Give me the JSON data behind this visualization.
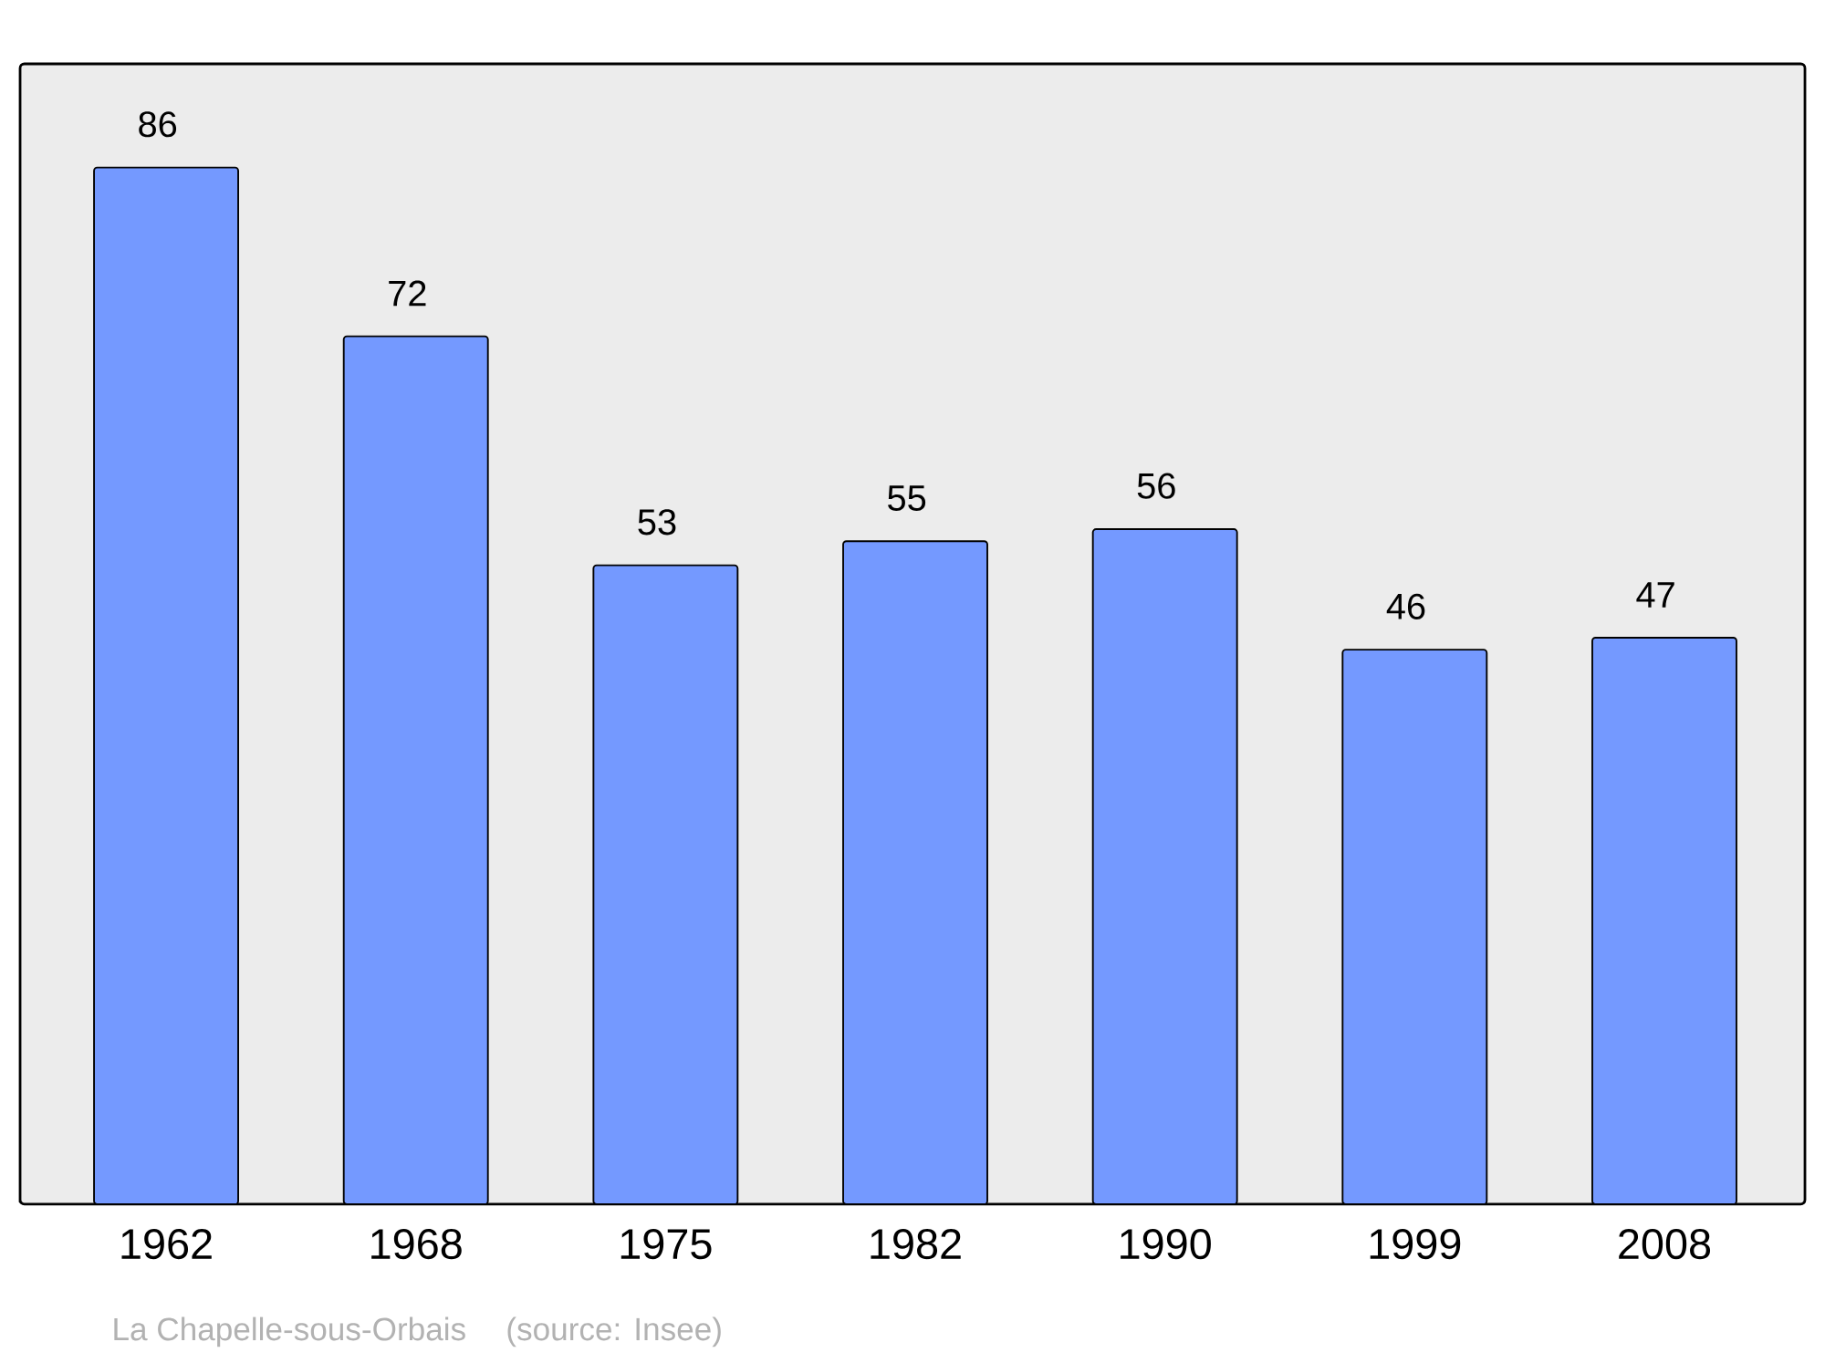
{
  "chart_data": {
    "type": "bar",
    "categories": [
      "1962",
      "1968",
      "1975",
      "1982",
      "1990",
      "1999",
      "2008"
    ],
    "values": [
      86,
      72,
      53,
      55,
      56,
      46,
      47
    ],
    "color": "#7499ff",
    "data_labels": true,
    "annotations": [
      "La Chapelle-sous-Orbais",
      "(source: Insee)"
    ]
  }
}
